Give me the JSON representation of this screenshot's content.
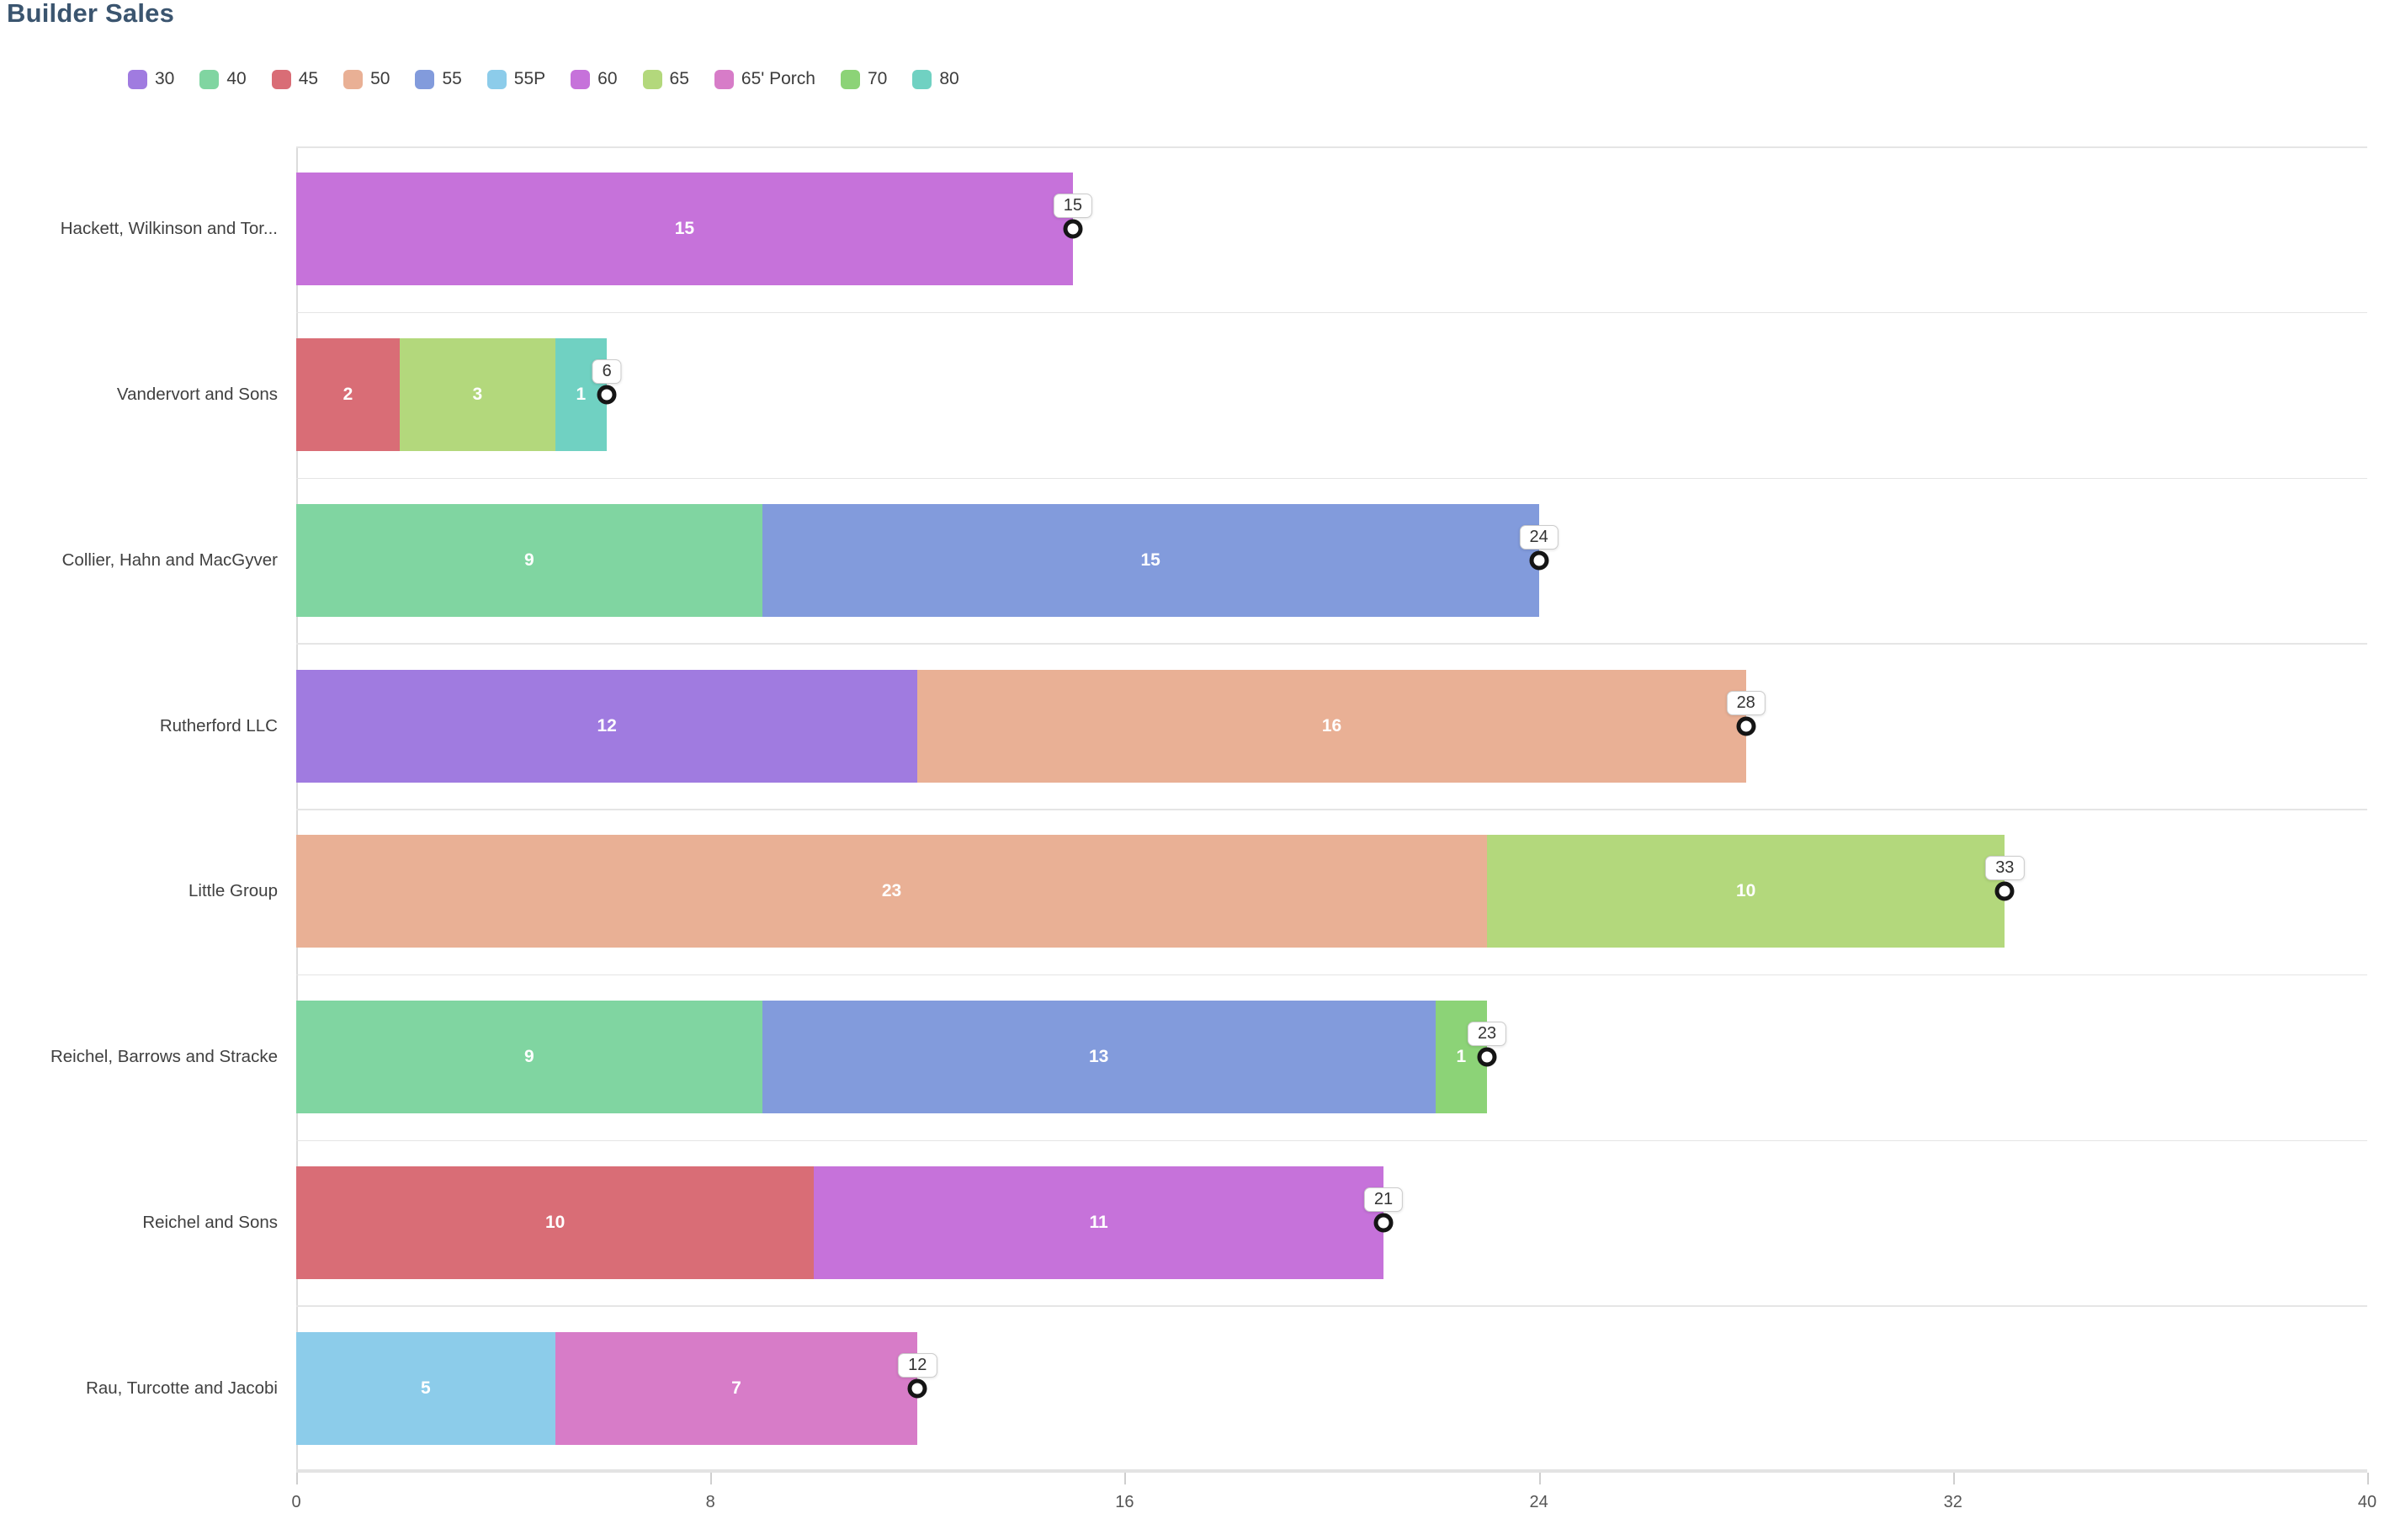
{
  "title": "Builder Sales",
  "legend": [
    {
      "label": "30",
      "color": "#a07be0"
    },
    {
      "label": "40",
      "color": "#80d5a1"
    },
    {
      "label": "45",
      "color": "#d96d76"
    },
    {
      "label": "50",
      "color": "#e9b095"
    },
    {
      "label": "55",
      "color": "#829bdc"
    },
    {
      "label": "55P",
      "color": "#8cccea"
    },
    {
      "label": "60",
      "color": "#c672da"
    },
    {
      "label": "65",
      "color": "#b3d87c"
    },
    {
      "label": "65' Porch",
      "color": "#d77cc8"
    },
    {
      "label": "70",
      "color": "#8cd377"
    },
    {
      "label": "80",
      "color": "#70d1c2"
    }
  ],
  "chart_data": {
    "type": "bar",
    "orientation": "horizontal",
    "stacked": true,
    "title": "Builder Sales",
    "xlabel": "",
    "ylabel": "",
    "xlim": [
      0,
      40
    ],
    "x_ticks": [
      0,
      8,
      16,
      24,
      32,
      40
    ],
    "legend_position": "top",
    "grid": false,
    "categories": [
      "Hackett, Wilkinson and Tor...",
      "Vandervort and Sons",
      "Collier, Hahn and MacGyver",
      "Rutherford LLC",
      "Little Group",
      "Reichel, Barrows and Stracke",
      "Reichel and Sons",
      "Rau, Turcotte and Jacobi"
    ],
    "rows": [
      {
        "label": "Hackett, Wilkinson and Tor...",
        "total": 15,
        "segments": [
          {
            "series": "60",
            "value": 15
          }
        ]
      },
      {
        "label": "Vandervort and Sons",
        "total": 6,
        "segments": [
          {
            "series": "45",
            "value": 2
          },
          {
            "series": "65",
            "value": 3
          },
          {
            "series": "80",
            "value": 1
          }
        ]
      },
      {
        "label": "Collier, Hahn and MacGyver",
        "total": 24,
        "segments": [
          {
            "series": "40",
            "value": 9
          },
          {
            "series": "55",
            "value": 15
          }
        ]
      },
      {
        "label": "Rutherford LLC",
        "total": 28,
        "segments": [
          {
            "series": "30",
            "value": 12
          },
          {
            "series": "50",
            "value": 16
          }
        ]
      },
      {
        "label": "Little Group",
        "total": 33,
        "segments": [
          {
            "series": "50",
            "value": 23
          },
          {
            "series": "65",
            "value": 10
          }
        ]
      },
      {
        "label": "Reichel, Barrows and Stracke",
        "total": 23,
        "segments": [
          {
            "series": "40",
            "value": 9
          },
          {
            "series": "55",
            "value": 13
          },
          {
            "series": "70",
            "value": 1
          }
        ]
      },
      {
        "label": "Reichel and Sons",
        "total": 21,
        "segments": [
          {
            "series": "45",
            "value": 10
          },
          {
            "series": "60",
            "value": 11
          }
        ]
      },
      {
        "label": "Rau, Turcotte and Jacobi",
        "total": 12,
        "segments": [
          {
            "series": "55P",
            "value": 5
          },
          {
            "series": "65' Porch",
            "value": 7
          }
        ]
      }
    ]
  }
}
